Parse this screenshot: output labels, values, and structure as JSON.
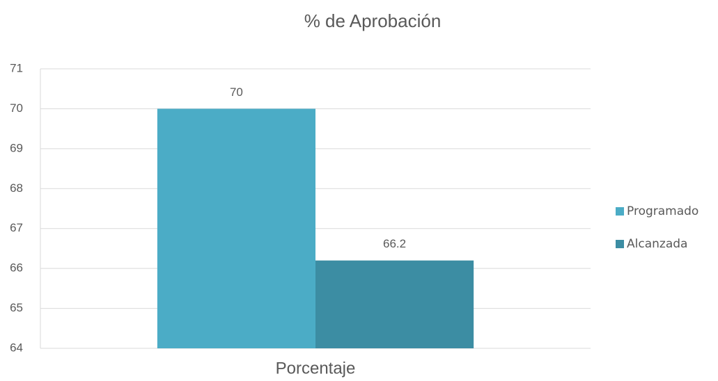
{
  "chart_data": {
    "type": "bar",
    "title": "% de Aprobación",
    "categories": [
      "Porcentaje"
    ],
    "series": [
      {
        "name": "Programado",
        "color": "#4bacc6",
        "values": [
          70
        ]
      },
      {
        "name": "Alcanzada",
        "color": "#3c8da3",
        "values": [
          66.2
        ]
      }
    ],
    "ylim": [
      64,
      71
    ],
    "yticks": [
      64,
      65,
      66,
      67,
      68,
      69,
      70,
      71
    ],
    "grid": true,
    "legend": "right"
  }
}
